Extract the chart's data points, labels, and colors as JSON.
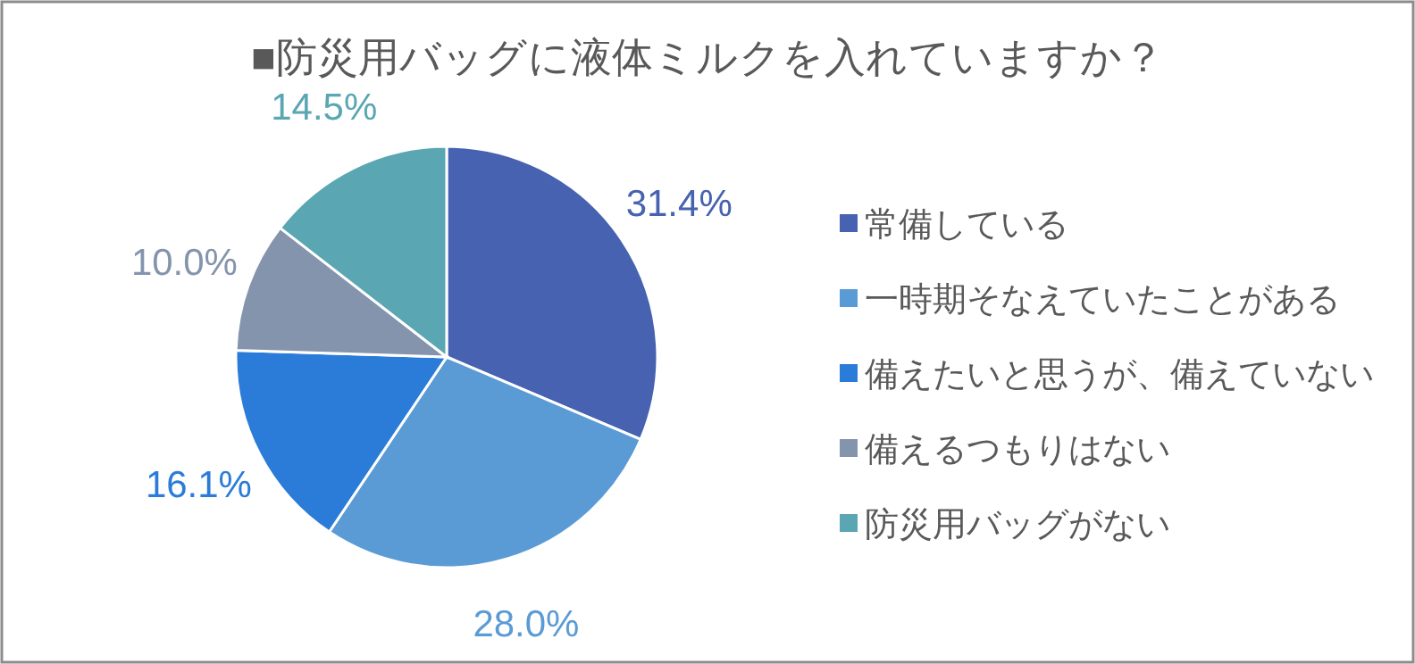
{
  "chart_data": {
    "type": "pie",
    "title": "■防災用バッグに液体ミルクを入れていますか？",
    "categories": [
      "常備している",
      "一時期そなえていたことがある",
      "備えたいと思うが、備えていない",
      "備えるつもりはない",
      "防災用バッグがない"
    ],
    "values": [
      31.4,
      28.0,
      16.1,
      10.0,
      14.5
    ],
    "colors": [
      "#4662b0",
      "#5b9bd5",
      "#2a7cd8",
      "#8594ad",
      "#5aa6b2"
    ],
    "value_labels": [
      "31.4%",
      "28.0%",
      "16.1%",
      "10.0%",
      "14.5%"
    ],
    "legend": "right"
  }
}
